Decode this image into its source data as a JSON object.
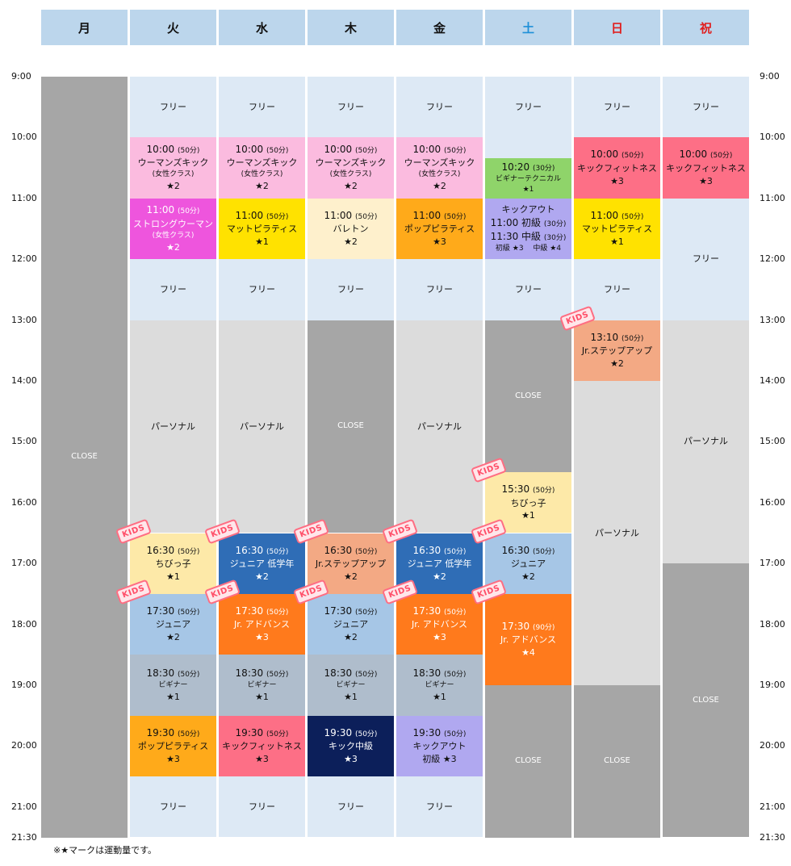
{
  "days": [
    {
      "label": "月",
      "color": "#111111"
    },
    {
      "label": "火",
      "color": "#111111"
    },
    {
      "label": "水",
      "color": "#111111"
    },
    {
      "label": "木",
      "color": "#111111"
    },
    {
      "label": "金",
      "color": "#111111"
    },
    {
      "label": "土",
      "color": "#1e90d8"
    },
    {
      "label": "日",
      "color": "#e01e1e"
    },
    {
      "label": "祝",
      "color": "#e01e1e"
    }
  ],
  "times": [
    "9:00",
    "10:00",
    "11:00",
    "12:00",
    "13:00",
    "14:00",
    "15:00",
    "16:00",
    "17:00",
    "18:00",
    "19:00",
    "20:00",
    "21:00",
    "21:30"
  ],
  "note": "※★マークは運動量です。",
  "kids_label": "KIDS",
  "blocks": [
    {
      "col": 0,
      "start": "9:00",
      "end": "21:30",
      "bg": "#a6a6a6",
      "dark": true,
      "lines": [
        {
          "c": "x",
          "v": "CLOSE"
        }
      ]
    },
    {
      "col": 1,
      "start": "9:00",
      "end": "10:00",
      "bg": "#dde9f5",
      "lines": [
        {
          "c": "p",
          "v": "フリー"
        }
      ]
    },
    {
      "col": 1,
      "start": "10:00",
      "end": "11:00",
      "bg": "#fbbbdf",
      "lines": [
        {
          "c": "t",
          "v": "10:00",
          "d": "(50分)"
        },
        {
          "c": "n",
          "v": "ウーマンズキック"
        },
        {
          "c": "s",
          "v": "(女性クラス)"
        },
        {
          "c": "st",
          "v": "★2"
        }
      ]
    },
    {
      "col": 1,
      "start": "11:00",
      "end": "12:00",
      "bg": "#ee55dd",
      "dark": true,
      "lines": [
        {
          "c": "t",
          "v": "11:00",
          "d": "(50分)"
        },
        {
          "c": "n",
          "v": "ストロングウーマン"
        },
        {
          "c": "s",
          "v": "(女性クラス)"
        },
        {
          "c": "st",
          "v": "★2"
        }
      ]
    },
    {
      "col": 1,
      "start": "12:00",
      "end": "13:00",
      "bg": "#dde9f5",
      "lines": [
        {
          "c": "p",
          "v": "フリー"
        }
      ]
    },
    {
      "col": 1,
      "start": "13:00",
      "end": "16:30",
      "bg": "#dcdcdc",
      "lines": [
        {
          "c": "p",
          "v": "パーソナル"
        }
      ]
    },
    {
      "col": 1,
      "start": "16:30",
      "end": "17:30",
      "bg": "#fde9a8",
      "kids": true,
      "lines": [
        {
          "c": "t",
          "v": "16:30",
          "d": "(50分)"
        },
        {
          "c": "n",
          "v": "ちびっ子"
        },
        {
          "c": "st",
          "v": "★1"
        }
      ]
    },
    {
      "col": 1,
      "start": "17:30",
      "end": "18:30",
      "bg": "#a6c6e6",
      "kids": true,
      "lines": [
        {
          "c": "t",
          "v": "17:30",
          "d": "(50分)"
        },
        {
          "c": "n",
          "v": "ジュニア"
        },
        {
          "c": "st",
          "v": "★2"
        }
      ]
    },
    {
      "col": 1,
      "start": "18:30",
      "end": "19:30",
      "bg": "#afbdcc",
      "lines": [
        {
          "c": "t",
          "v": "18:30",
          "d": "(50分)"
        },
        {
          "c": "s",
          "v": "ビギナー"
        },
        {
          "c": "st",
          "v": "★1"
        }
      ]
    },
    {
      "col": 1,
      "start": "19:30",
      "end": "20:30",
      "bg": "#ffaa1a",
      "lines": [
        {
          "c": "t",
          "v": "19:30",
          "d": "(50分)"
        },
        {
          "c": "n",
          "v": "ポップピラティス"
        },
        {
          "c": "st",
          "v": "★3"
        }
      ]
    },
    {
      "col": 1,
      "start": "20:30",
      "end": "21:30",
      "bg": "#dde9f5",
      "lines": [
        {
          "c": "p",
          "v": "フリー"
        }
      ]
    },
    {
      "col": 2,
      "start": "9:00",
      "end": "10:00",
      "bg": "#dde9f5",
      "lines": [
        {
          "c": "p",
          "v": "フリー"
        }
      ]
    },
    {
      "col": 2,
      "start": "10:00",
      "end": "11:00",
      "bg": "#fbbbdf",
      "lines": [
        {
          "c": "t",
          "v": "10:00",
          "d": "(50分)"
        },
        {
          "c": "n",
          "v": "ウーマンズキック"
        },
        {
          "c": "s",
          "v": "(女性クラス)"
        },
        {
          "c": "st",
          "v": "★2"
        }
      ]
    },
    {
      "col": 2,
      "start": "11:00",
      "end": "12:00",
      "bg": "#ffe200",
      "lines": [
        {
          "c": "t",
          "v": "11:00",
          "d": "(50分)"
        },
        {
          "c": "n",
          "v": "マットピラティス"
        },
        {
          "c": "st",
          "v": "★1"
        }
      ]
    },
    {
      "col": 2,
      "start": "12:00",
      "end": "13:00",
      "bg": "#dde9f5",
      "lines": [
        {
          "c": "p",
          "v": "フリー"
        }
      ]
    },
    {
      "col": 2,
      "start": "13:00",
      "end": "16:30",
      "bg": "#dcdcdc",
      "lines": [
        {
          "c": "p",
          "v": "パーソナル"
        }
      ]
    },
    {
      "col": 2,
      "start": "16:30",
      "end": "17:30",
      "bg": "#2f6db6",
      "dark": true,
      "kids": true,
      "lines": [
        {
          "c": "t",
          "v": "16:30",
          "d": "(50分)"
        },
        {
          "c": "n",
          "v": "ジュニア 低学年"
        },
        {
          "c": "st",
          "v": "★2"
        }
      ]
    },
    {
      "col": 2,
      "start": "17:30",
      "end": "18:30",
      "bg": "#ff7a1c",
      "dark": true,
      "kids": true,
      "lines": [
        {
          "c": "t",
          "v": "17:30",
          "d": "(50分)"
        },
        {
          "c": "n",
          "v": "Jr. アドバンス"
        },
        {
          "c": "st",
          "v": "★3"
        }
      ]
    },
    {
      "col": 2,
      "start": "18:30",
      "end": "19:30",
      "bg": "#afbdcc",
      "lines": [
        {
          "c": "t",
          "v": "18:30",
          "d": "(50分)"
        },
        {
          "c": "s",
          "v": "ビギナー"
        },
        {
          "c": "st",
          "v": "★1"
        }
      ]
    },
    {
      "col": 2,
      "start": "19:30",
      "end": "20:30",
      "bg": "#fd6f86",
      "lines": [
        {
          "c": "t",
          "v": "19:30",
          "d": "(50分)"
        },
        {
          "c": "n",
          "v": "キックフィットネス"
        },
        {
          "c": "st",
          "v": "★3"
        }
      ]
    },
    {
      "col": 2,
      "start": "20:30",
      "end": "21:30",
      "bg": "#dde9f5",
      "lines": [
        {
          "c": "p",
          "v": "フリー"
        }
      ]
    },
    {
      "col": 3,
      "start": "9:00",
      "end": "10:00",
      "bg": "#dde9f5",
      "lines": [
        {
          "c": "p",
          "v": "フリー"
        }
      ]
    },
    {
      "col": 3,
      "start": "10:00",
      "end": "11:00",
      "bg": "#fbbbdf",
      "lines": [
        {
          "c": "t",
          "v": "10:00",
          "d": "(50分)"
        },
        {
          "c": "n",
          "v": "ウーマンズキック"
        },
        {
          "c": "s",
          "v": "(女性クラス)"
        },
        {
          "c": "st",
          "v": "★2"
        }
      ]
    },
    {
      "col": 3,
      "start": "11:00",
      "end": "12:00",
      "bg": "#fef0cc",
      "lines": [
        {
          "c": "t",
          "v": "11:00",
          "d": "(50分)"
        },
        {
          "c": "n",
          "v": "バレトン"
        },
        {
          "c": "st",
          "v": "★2"
        }
      ]
    },
    {
      "col": 3,
      "start": "12:00",
      "end": "13:00",
      "bg": "#dde9f5",
      "lines": [
        {
          "c": "p",
          "v": "フリー"
        }
      ]
    },
    {
      "col": 3,
      "start": "13:00",
      "end": "16:30",
      "bg": "#a6a6a6",
      "dark": true,
      "lines": [
        {
          "c": "x",
          "v": "CLOSE"
        }
      ]
    },
    {
      "col": 3,
      "start": "16:30",
      "end": "17:30",
      "bg": "#f3a984",
      "kids": true,
      "lines": [
        {
          "c": "t",
          "v": "16:30",
          "d": "(50分)"
        },
        {
          "c": "n",
          "v": "Jr.ステップアップ"
        },
        {
          "c": "st",
          "v": "★2"
        }
      ]
    },
    {
      "col": 3,
      "start": "17:30",
      "end": "18:30",
      "bg": "#a6c6e6",
      "kids": true,
      "lines": [
        {
          "c": "t",
          "v": "17:30",
          "d": "(50分)"
        },
        {
          "c": "n",
          "v": "ジュニア"
        },
        {
          "c": "st",
          "v": "★2"
        }
      ]
    },
    {
      "col": 3,
      "start": "18:30",
      "end": "19:30",
      "bg": "#afbdcc",
      "lines": [
        {
          "c": "t",
          "v": "18:30",
          "d": "(50分)"
        },
        {
          "c": "s",
          "v": "ビギナー"
        },
        {
          "c": "st",
          "v": "★1"
        }
      ]
    },
    {
      "col": 3,
      "start": "19:30",
      "end": "20:30",
      "bg": "#0c1f5a",
      "dark": true,
      "lines": [
        {
          "c": "t",
          "v": "19:30",
          "d": "(50分)"
        },
        {
          "c": "n",
          "v": "キック中級"
        },
        {
          "c": "st",
          "v": "★3"
        }
      ]
    },
    {
      "col": 3,
      "start": "20:30",
      "end": "21:30",
      "bg": "#dde9f5",
      "lines": [
        {
          "c": "p",
          "v": "フリー"
        }
      ]
    },
    {
      "col": 4,
      "start": "9:00",
      "end": "10:00",
      "bg": "#dde9f5",
      "lines": [
        {
          "c": "p",
          "v": "フリー"
        }
      ]
    },
    {
      "col": 4,
      "start": "10:00",
      "end": "11:00",
      "bg": "#fbbbdf",
      "lines": [
        {
          "c": "t",
          "v": "10:00",
          "d": "(50分)"
        },
        {
          "c": "n",
          "v": "ウーマンズキック"
        },
        {
          "c": "s",
          "v": "(女性クラス)"
        },
        {
          "c": "st",
          "v": "★2"
        }
      ]
    },
    {
      "col": 4,
      "start": "11:00",
      "end": "12:00",
      "bg": "#ffaa1a",
      "lines": [
        {
          "c": "t",
          "v": "11:00",
          "d": "(50分)"
        },
        {
          "c": "n",
          "v": "ポップピラティス"
        },
        {
          "c": "st",
          "v": "★3"
        }
      ]
    },
    {
      "col": 4,
      "start": "12:00",
      "end": "13:00",
      "bg": "#dde9f5",
      "lines": [
        {
          "c": "p",
          "v": "フリー"
        }
      ]
    },
    {
      "col": 4,
      "start": "13:00",
      "end": "16:30",
      "bg": "#dcdcdc",
      "lines": [
        {
          "c": "p",
          "v": "パーソナル"
        }
      ]
    },
    {
      "col": 4,
      "start": "16:30",
      "end": "17:30",
      "bg": "#2f6db6",
      "dark": true,
      "kids": true,
      "lines": [
        {
          "c": "t",
          "v": "16:30",
          "d": "(50分)"
        },
        {
          "c": "n",
          "v": "ジュニア 低学年"
        },
        {
          "c": "st",
          "v": "★2"
        }
      ]
    },
    {
      "col": 4,
      "start": "17:30",
      "end": "18:30",
      "bg": "#ff7a1c",
      "dark": true,
      "kids": true,
      "lines": [
        {
          "c": "t",
          "v": "17:30",
          "d": "(50分)"
        },
        {
          "c": "n",
          "v": "Jr. アドバンス"
        },
        {
          "c": "st",
          "v": "★3"
        }
      ]
    },
    {
      "col": 4,
      "start": "18:30",
      "end": "19:30",
      "bg": "#afbdcc",
      "lines": [
        {
          "c": "t",
          "v": "18:30",
          "d": "(50分)"
        },
        {
          "c": "s",
          "v": "ビギナー"
        },
        {
          "c": "st",
          "v": "★1"
        }
      ]
    },
    {
      "col": 4,
      "start": "19:30",
      "end": "20:30",
      "bg": "#b0a8f0",
      "lines": [
        {
          "c": "t",
          "v": "19:30",
          "d": "(50分)"
        },
        {
          "c": "n",
          "v": "キックアウト"
        },
        {
          "c": "n",
          "v": "初級 ★3"
        }
      ]
    },
    {
      "col": 4,
      "start": "20:30",
      "end": "21:30",
      "bg": "#dde9f5",
      "lines": [
        {
          "c": "p",
          "v": "フリー"
        }
      ]
    },
    {
      "col": 5,
      "start": "9:00",
      "end": "10:00",
      "bg": "#dde9f5",
      "lines": [
        {
          "c": "p",
          "v": "フリー"
        }
      ]
    },
    {
      "col": 5,
      "start": "10:00",
      "end": "10:20",
      "bg": "#dde9f5",
      "lines": []
    },
    {
      "col": 5,
      "start": "10:20",
      "end": "11:00",
      "bg": "#8fd46a",
      "lines": [
        {
          "c": "t",
          "v": "10:20",
          "d": "(30分)"
        },
        {
          "c": "s",
          "v": "ビギナーテクニカル"
        },
        {
          "c": "s",
          "v": "★1"
        }
      ]
    },
    {
      "col": 5,
      "start": "11:00",
      "end": "12:00",
      "bg": "#b0a8f0",
      "lines": [
        {
          "c": "n",
          "v": "キックアウト"
        },
        {
          "c": "t",
          "v": "11:00 初級",
          "d": "(30分)"
        },
        {
          "c": "t",
          "v": "11:30 中級",
          "d": "(30分)"
        },
        {
          "c": "s",
          "v": "初級 ★3　 中級 ★4"
        }
      ]
    },
    {
      "col": 5,
      "start": "12:00",
      "end": "13:00",
      "bg": "#dde9f5",
      "lines": [
        {
          "c": "p",
          "v": "フリー"
        }
      ]
    },
    {
      "col": 5,
      "start": "13:00",
      "end": "15:30",
      "bg": "#a6a6a6",
      "dark": true,
      "lines": [
        {
          "c": "x",
          "v": "CLOSE"
        }
      ]
    },
    {
      "col": 5,
      "start": "15:30",
      "end": "16:30",
      "bg": "#fde9a8",
      "kids": true,
      "lines": [
        {
          "c": "t",
          "v": "15:30",
          "d": "(50分)"
        },
        {
          "c": "n",
          "v": "ちびっ子"
        },
        {
          "c": "st",
          "v": "★1"
        }
      ]
    },
    {
      "col": 5,
      "start": "16:30",
      "end": "17:30",
      "bg": "#a6c6e6",
      "kids": true,
      "lines": [
        {
          "c": "t",
          "v": "16:30",
          "d": "(50分)"
        },
        {
          "c": "n",
          "v": "ジュニア"
        },
        {
          "c": "st",
          "v": "★2"
        }
      ]
    },
    {
      "col": 5,
      "start": "17:30",
      "end": "19:00",
      "bg": "#ff7a1c",
      "dark": true,
      "kids": true,
      "lines": [
        {
          "c": "t",
          "v": "17:30",
          "d": "(90分)"
        },
        {
          "c": "n",
          "v": "Jr. アドバンス"
        },
        {
          "c": "st",
          "v": "★4"
        }
      ]
    },
    {
      "col": 5,
      "start": "19:00",
      "end": "21:30",
      "bg": "#a6a6a6",
      "dark": true,
      "lines": [
        {
          "c": "x",
          "v": "CLOSE"
        }
      ]
    },
    {
      "col": 6,
      "start": "9:00",
      "end": "10:00",
      "bg": "#dde9f5",
      "lines": [
        {
          "c": "p",
          "v": "フリー"
        }
      ]
    },
    {
      "col": 6,
      "start": "10:00",
      "end": "11:00",
      "bg": "#fd6f86",
      "lines": [
        {
          "c": "t",
          "v": "10:00",
          "d": "(50分)"
        },
        {
          "c": "n",
          "v": "キックフィットネス"
        },
        {
          "c": "st",
          "v": "★3"
        }
      ]
    },
    {
      "col": 6,
      "start": "11:00",
      "end": "12:00",
      "bg": "#ffe200",
      "lines": [
        {
          "c": "t",
          "v": "11:00",
          "d": "(50分)"
        },
        {
          "c": "n",
          "v": "マットピラティス"
        },
        {
          "c": "st",
          "v": "★1"
        }
      ]
    },
    {
      "col": 6,
      "start": "12:00",
      "end": "13:00",
      "bg": "#dde9f5",
      "lines": [
        {
          "c": "p",
          "v": "フリー"
        }
      ]
    },
    {
      "col": 6,
      "start": "13:00",
      "end": "14:00",
      "bg": "#f3a984",
      "kids": true,
      "lines": [
        {
          "c": "t",
          "v": "13:10",
          "d": "(50分)"
        },
        {
          "c": "n",
          "v": "Jr.ステップアップ"
        },
        {
          "c": "st",
          "v": "★2"
        }
      ]
    },
    {
      "col": 6,
      "start": "14:00",
      "end": "19:00",
      "bg": "#dcdcdc",
      "lines": [
        {
          "c": "p",
          "v": "パーソナル"
        }
      ]
    },
    {
      "col": 6,
      "start": "19:00",
      "end": "21:30",
      "bg": "#a6a6a6",
      "dark": true,
      "lines": [
        {
          "c": "x",
          "v": "CLOSE"
        }
      ]
    },
    {
      "col": 7,
      "start": "9:00",
      "end": "10:00",
      "bg": "#dde9f5",
      "lines": [
        {
          "c": "p",
          "v": "フリー"
        }
      ]
    },
    {
      "col": 7,
      "start": "10:00",
      "end": "11:00",
      "bg": "#fd6f86",
      "lines": [
        {
          "c": "t",
          "v": "10:00",
          "d": "(50分)"
        },
        {
          "c": "n",
          "v": "キックフィットネス"
        },
        {
          "c": "st",
          "v": "★3"
        }
      ]
    },
    {
      "col": 7,
      "start": "11:00",
      "end": "13:00",
      "bg": "#dde9f5",
      "lines": [
        {
          "c": "p",
          "v": "フリー"
        }
      ]
    },
    {
      "col": 7,
      "start": "13:00",
      "end": "17:00",
      "bg": "#dcdcdc",
      "lines": [
        {
          "c": "p",
          "v": "パーソナル"
        }
      ]
    },
    {
      "col": 7,
      "start": "17:00",
      "end": "21:30",
      "bg": "#a6a6a6",
      "dark": true,
      "lines": [
        {
          "c": "x",
          "v": "CLOSE"
        }
      ]
    }
  ]
}
